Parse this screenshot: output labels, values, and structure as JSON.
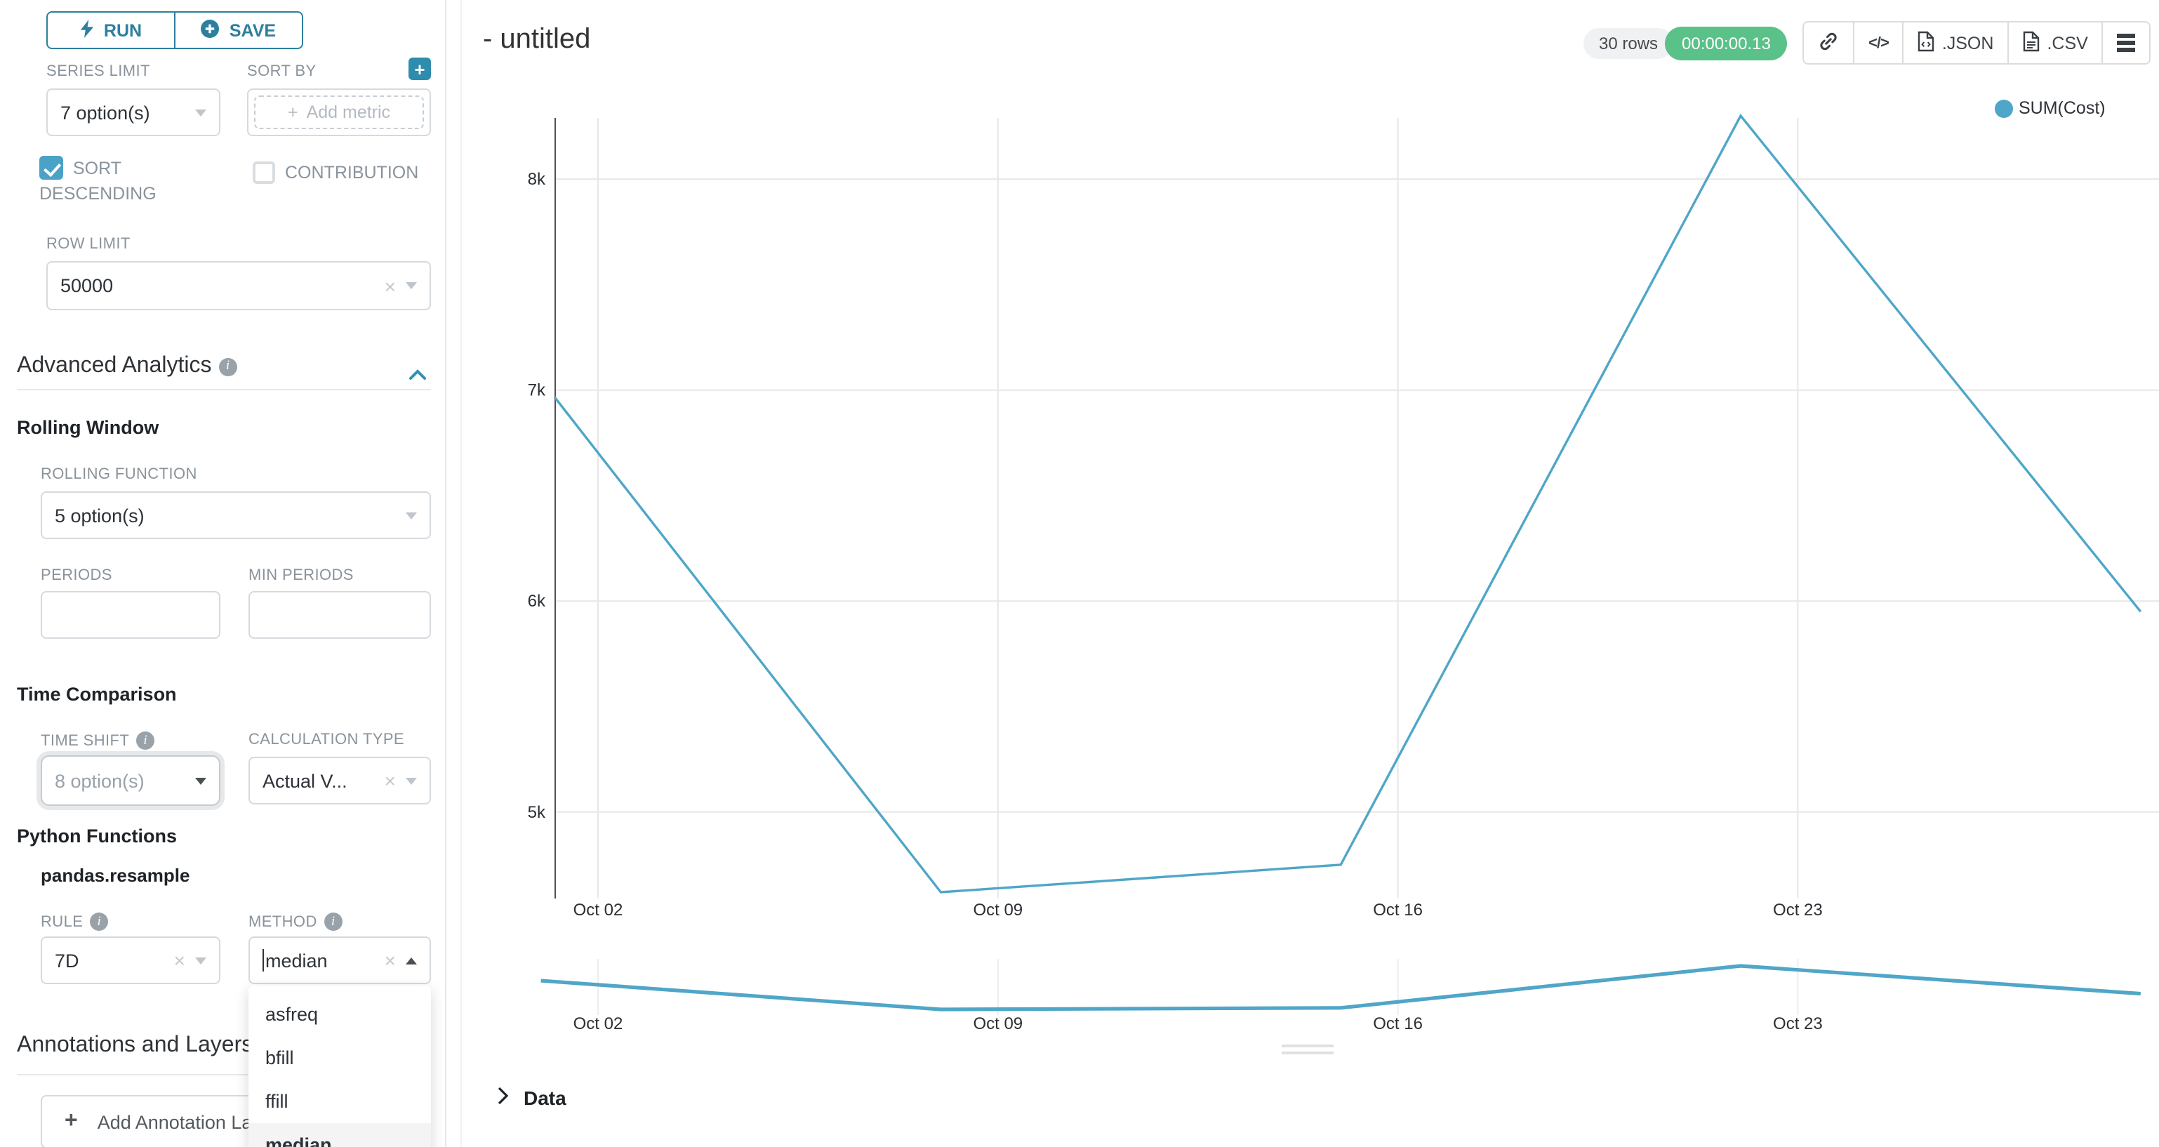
{
  "sidebar": {
    "run_button": {
      "label": "RUN"
    },
    "save_button": {
      "label": "SAVE"
    },
    "series_limit": {
      "label": "SERIES LIMIT",
      "value": "7 option(s)"
    },
    "sort_by": {
      "label": "SORT BY",
      "placeholder": "Add metric"
    },
    "sort_descending": {
      "label": "SORT DESCENDING",
      "checked": true
    },
    "contribution": {
      "label": "CONTRIBUTION",
      "checked": false
    },
    "row_limit": {
      "label": "ROW LIMIT",
      "value": "50000"
    },
    "advanced_analytics": {
      "title": "Advanced Analytics"
    },
    "rolling_window": {
      "title": "Rolling Window"
    },
    "rolling_function": {
      "label": "ROLLING FUNCTION",
      "value": "5 option(s)"
    },
    "periods": {
      "label": "PERIODS",
      "value": ""
    },
    "min_periods": {
      "label": "MIN PERIODS",
      "value": ""
    },
    "time_comparison": {
      "title": "Time Comparison"
    },
    "time_shift": {
      "label": "TIME SHIFT",
      "value": "8 option(s)"
    },
    "calculation_type": {
      "label": "CALCULATION TYPE",
      "value": "Actual V..."
    },
    "python_functions": {
      "title": "Python Functions",
      "subtitle": "pandas.resample"
    },
    "rule": {
      "label": "RULE",
      "value": "7D"
    },
    "method": {
      "label": "METHOD",
      "value": "median",
      "options": [
        "asfreq",
        "bfill",
        "ffill",
        "median"
      ],
      "selected_option": "median",
      "open": true
    },
    "annotations": {
      "title": "Annotations and Layers",
      "add_button_label": "Add Annotation Layer"
    }
  },
  "header": {
    "title": "- untitled",
    "rows_badge": "30 rows",
    "timer_badge": "00:00:00.13",
    "export_json_label": ".JSON",
    "export_csv_label": ".CSV"
  },
  "icons": {
    "run": "lightning-bolt",
    "save": "plus-circle",
    "sort_by_add": "plus",
    "section_info": "info-circle",
    "advanced_analytics_toggle": "chevron-up",
    "toolbar": [
      "link",
      "code",
      "file-json",
      "file-csv",
      "menu"
    ],
    "data_panel": "chevron-right"
  },
  "data_panel": {
    "label": "Data"
  },
  "chart_data": {
    "type": "line",
    "title": "- untitled",
    "legend_position": "top-right",
    "grid": true,
    "y_domain": [
      4590,
      8290
    ],
    "x_range_days": [
      1,
      29
    ],
    "series": [
      {
        "name": "SUM(Cost)",
        "color": "#4fa6c8",
        "points": [
          {
            "date": "Oct 01",
            "day": 1,
            "value": 7050
          },
          {
            "date": "Oct 08",
            "day": 8,
            "value": 4620
          },
          {
            "date": "Oct 15",
            "day": 15,
            "value": 4750
          },
          {
            "date": "Oct 22",
            "day": 22,
            "value": 8300
          },
          {
            "date": "Oct 29",
            "day": 29,
            "value": 5950
          }
        ]
      }
    ],
    "x_ticks": [
      {
        "label": "Oct 02",
        "day": 2
      },
      {
        "label": "Oct 09",
        "day": 9
      },
      {
        "label": "Oct 16",
        "day": 16
      },
      {
        "label": "Oct 23",
        "day": 23
      }
    ],
    "y_ticks": [
      {
        "label": "5k",
        "value": 5000
      },
      {
        "label": "6k",
        "value": 6000
      },
      {
        "label": "7k",
        "value": 7000
      },
      {
        "label": "8k",
        "value": 8000
      }
    ],
    "has_mini_preview": true
  }
}
